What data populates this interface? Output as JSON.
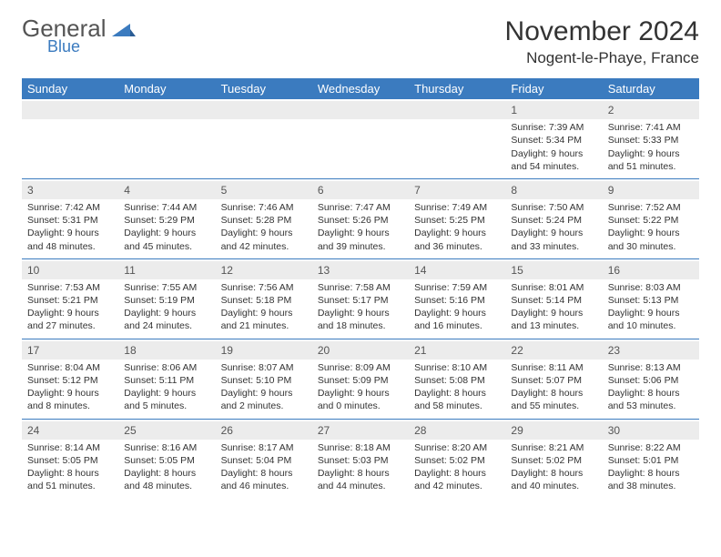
{
  "brand": {
    "general": "General",
    "blue": "Blue"
  },
  "header": {
    "title": "November 2024",
    "location": "Nogent-le-Phaye, France"
  },
  "colors": {
    "accent": "#3b7bbf",
    "header_text": "#ffffff",
    "daybar_bg": "#ececec",
    "body_text": "#333333"
  },
  "calendar": {
    "day_headers": [
      "Sunday",
      "Monday",
      "Tuesday",
      "Wednesday",
      "Thursday",
      "Friday",
      "Saturday"
    ],
    "weeks": [
      [
        null,
        null,
        null,
        null,
        null,
        {
          "n": "1",
          "sunrise": "Sunrise: 7:39 AM",
          "sunset": "Sunset: 5:34 PM",
          "daylight": "Daylight: 9 hours and 54 minutes."
        },
        {
          "n": "2",
          "sunrise": "Sunrise: 7:41 AM",
          "sunset": "Sunset: 5:33 PM",
          "daylight": "Daylight: 9 hours and 51 minutes."
        }
      ],
      [
        {
          "n": "3",
          "sunrise": "Sunrise: 7:42 AM",
          "sunset": "Sunset: 5:31 PM",
          "daylight": "Daylight: 9 hours and 48 minutes."
        },
        {
          "n": "4",
          "sunrise": "Sunrise: 7:44 AM",
          "sunset": "Sunset: 5:29 PM",
          "daylight": "Daylight: 9 hours and 45 minutes."
        },
        {
          "n": "5",
          "sunrise": "Sunrise: 7:46 AM",
          "sunset": "Sunset: 5:28 PM",
          "daylight": "Daylight: 9 hours and 42 minutes."
        },
        {
          "n": "6",
          "sunrise": "Sunrise: 7:47 AM",
          "sunset": "Sunset: 5:26 PM",
          "daylight": "Daylight: 9 hours and 39 minutes."
        },
        {
          "n": "7",
          "sunrise": "Sunrise: 7:49 AM",
          "sunset": "Sunset: 5:25 PM",
          "daylight": "Daylight: 9 hours and 36 minutes."
        },
        {
          "n": "8",
          "sunrise": "Sunrise: 7:50 AM",
          "sunset": "Sunset: 5:24 PM",
          "daylight": "Daylight: 9 hours and 33 minutes."
        },
        {
          "n": "9",
          "sunrise": "Sunrise: 7:52 AM",
          "sunset": "Sunset: 5:22 PM",
          "daylight": "Daylight: 9 hours and 30 minutes."
        }
      ],
      [
        {
          "n": "10",
          "sunrise": "Sunrise: 7:53 AM",
          "sunset": "Sunset: 5:21 PM",
          "daylight": "Daylight: 9 hours and 27 minutes."
        },
        {
          "n": "11",
          "sunrise": "Sunrise: 7:55 AM",
          "sunset": "Sunset: 5:19 PM",
          "daylight": "Daylight: 9 hours and 24 minutes."
        },
        {
          "n": "12",
          "sunrise": "Sunrise: 7:56 AM",
          "sunset": "Sunset: 5:18 PM",
          "daylight": "Daylight: 9 hours and 21 minutes."
        },
        {
          "n": "13",
          "sunrise": "Sunrise: 7:58 AM",
          "sunset": "Sunset: 5:17 PM",
          "daylight": "Daylight: 9 hours and 18 minutes."
        },
        {
          "n": "14",
          "sunrise": "Sunrise: 7:59 AM",
          "sunset": "Sunset: 5:16 PM",
          "daylight": "Daylight: 9 hours and 16 minutes."
        },
        {
          "n": "15",
          "sunrise": "Sunrise: 8:01 AM",
          "sunset": "Sunset: 5:14 PM",
          "daylight": "Daylight: 9 hours and 13 minutes."
        },
        {
          "n": "16",
          "sunrise": "Sunrise: 8:03 AM",
          "sunset": "Sunset: 5:13 PM",
          "daylight": "Daylight: 9 hours and 10 minutes."
        }
      ],
      [
        {
          "n": "17",
          "sunrise": "Sunrise: 8:04 AM",
          "sunset": "Sunset: 5:12 PM",
          "daylight": "Daylight: 9 hours and 8 minutes."
        },
        {
          "n": "18",
          "sunrise": "Sunrise: 8:06 AM",
          "sunset": "Sunset: 5:11 PM",
          "daylight": "Daylight: 9 hours and 5 minutes."
        },
        {
          "n": "19",
          "sunrise": "Sunrise: 8:07 AM",
          "sunset": "Sunset: 5:10 PM",
          "daylight": "Daylight: 9 hours and 2 minutes."
        },
        {
          "n": "20",
          "sunrise": "Sunrise: 8:09 AM",
          "sunset": "Sunset: 5:09 PM",
          "daylight": "Daylight: 9 hours and 0 minutes."
        },
        {
          "n": "21",
          "sunrise": "Sunrise: 8:10 AM",
          "sunset": "Sunset: 5:08 PM",
          "daylight": "Daylight: 8 hours and 58 minutes."
        },
        {
          "n": "22",
          "sunrise": "Sunrise: 8:11 AM",
          "sunset": "Sunset: 5:07 PM",
          "daylight": "Daylight: 8 hours and 55 minutes."
        },
        {
          "n": "23",
          "sunrise": "Sunrise: 8:13 AM",
          "sunset": "Sunset: 5:06 PM",
          "daylight": "Daylight: 8 hours and 53 minutes."
        }
      ],
      [
        {
          "n": "24",
          "sunrise": "Sunrise: 8:14 AM",
          "sunset": "Sunset: 5:05 PM",
          "daylight": "Daylight: 8 hours and 51 minutes."
        },
        {
          "n": "25",
          "sunrise": "Sunrise: 8:16 AM",
          "sunset": "Sunset: 5:05 PM",
          "daylight": "Daylight: 8 hours and 48 minutes."
        },
        {
          "n": "26",
          "sunrise": "Sunrise: 8:17 AM",
          "sunset": "Sunset: 5:04 PM",
          "daylight": "Daylight: 8 hours and 46 minutes."
        },
        {
          "n": "27",
          "sunrise": "Sunrise: 8:18 AM",
          "sunset": "Sunset: 5:03 PM",
          "daylight": "Daylight: 8 hours and 44 minutes."
        },
        {
          "n": "28",
          "sunrise": "Sunrise: 8:20 AM",
          "sunset": "Sunset: 5:02 PM",
          "daylight": "Daylight: 8 hours and 42 minutes."
        },
        {
          "n": "29",
          "sunrise": "Sunrise: 8:21 AM",
          "sunset": "Sunset: 5:02 PM",
          "daylight": "Daylight: 8 hours and 40 minutes."
        },
        {
          "n": "30",
          "sunrise": "Sunrise: 8:22 AM",
          "sunset": "Sunset: 5:01 PM",
          "daylight": "Daylight: 8 hours and 38 minutes."
        }
      ]
    ]
  }
}
